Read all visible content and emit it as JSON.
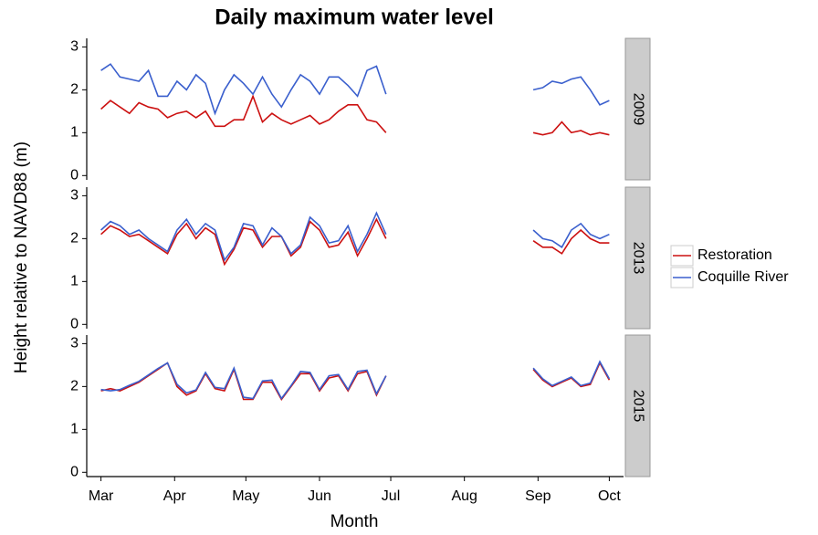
{
  "chart_data": {
    "type": "line",
    "title": "Daily maximum water level",
    "xlabel": "Month",
    "ylabel": "Height relative to NAVD88 (m)",
    "x": [
      0,
      4,
      8,
      12,
      16,
      20,
      24,
      28,
      32,
      36,
      40,
      44,
      48,
      52,
      56,
      60,
      64,
      68,
      72,
      76,
      80,
      84,
      88,
      92,
      96,
      100,
      104,
      108,
      112,
      116,
      120,
      150,
      182,
      186,
      190,
      194,
      198,
      202,
      206,
      210,
      214
    ],
    "xlim": [
      -6,
      220
    ],
    "xticks": [
      {
        "value": 0,
        "label": "Mar"
      },
      {
        "value": 31,
        "label": "Apr"
      },
      {
        "value": 61,
        "label": "May"
      },
      {
        "value": 92,
        "label": "Jun"
      },
      {
        "value": 122,
        "label": "Jul"
      },
      {
        "value": 153,
        "label": "Aug"
      },
      {
        "value": 184,
        "label": "Sep"
      },
      {
        "value": 214,
        "label": "Oct"
      }
    ],
    "legend": "right",
    "series": [
      {
        "name": "Restoration",
        "color": "#cc1111"
      },
      {
        "name": "Coquille River",
        "color": "#3a5fcd"
      }
    ],
    "panels": [
      {
        "label": "2009",
        "ylim": [
          -0.1,
          3.2
        ],
        "yticks": [
          0,
          1,
          2,
          3
        ],
        "values": [
          [
            1.55,
            1.75,
            1.6,
            1.45,
            1.7,
            1.6,
            1.55,
            1.35,
            1.45,
            1.5,
            1.35,
            1.5,
            1.15,
            1.15,
            1.3,
            1.3,
            1.85,
            1.25,
            1.45,
            1.3,
            1.2,
            1.3,
            1.4,
            1.2,
            1.3,
            1.5,
            1.65,
            1.65,
            1.3,
            1.25,
            1.0,
            null,
            1.0,
            0.95,
            1.0,
            1.25,
            1.0,
            1.05,
            0.95,
            1.0,
            0.95
          ],
          [
            2.45,
            2.6,
            2.3,
            2.25,
            2.2,
            2.45,
            1.85,
            1.85,
            2.2,
            2.0,
            2.35,
            2.15,
            1.45,
            2.0,
            2.35,
            2.15,
            1.9,
            2.3,
            1.9,
            1.6,
            2.0,
            2.35,
            2.2,
            1.9,
            2.3,
            2.3,
            2.1,
            1.85,
            2.45,
            2.55,
            1.9,
            null,
            2.0,
            2.05,
            2.2,
            2.15,
            2.25,
            2.3,
            2.0,
            1.65,
            1.75
          ]
        ]
      },
      {
        "label": "2013",
        "ylim": [
          -0.1,
          3.2
        ],
        "yticks": [
          0,
          1,
          2,
          3
        ],
        "values": [
          [
            2.1,
            2.3,
            2.2,
            2.05,
            2.1,
            1.95,
            1.8,
            1.65,
            2.1,
            2.35,
            2.0,
            2.25,
            2.1,
            1.4,
            1.75,
            2.25,
            2.2,
            1.8,
            2.05,
            2.05,
            1.6,
            1.8,
            2.4,
            2.2,
            1.8,
            1.85,
            2.15,
            1.6,
            2.0,
            2.45,
            2.0,
            null,
            1.95,
            1.8,
            1.8,
            1.65,
            2.0,
            2.2,
            2.0,
            1.9,
            1.9
          ],
          [
            2.2,
            2.4,
            2.3,
            2.1,
            2.2,
            2.0,
            1.85,
            1.7,
            2.2,
            2.45,
            2.1,
            2.35,
            2.2,
            1.5,
            1.8,
            2.35,
            2.3,
            1.85,
            2.25,
            2.05,
            1.65,
            1.85,
            2.5,
            2.3,
            1.9,
            1.95,
            2.3,
            1.7,
            2.1,
            2.6,
            2.1,
            null,
            2.2,
            2.0,
            1.95,
            1.8,
            2.2,
            2.35,
            2.1,
            2.0,
            2.1
          ]
        ]
      },
      {
        "label": "2015",
        "ylim": [
          -0.1,
          3.2
        ],
        "yticks": [
          0,
          1,
          2,
          3
        ],
        "values": [
          [
            1.9,
            1.95,
            1.9,
            2.0,
            2.1,
            2.25,
            2.4,
            2.55,
            2.0,
            1.8,
            1.9,
            2.3,
            1.95,
            1.9,
            2.4,
            1.7,
            1.7,
            2.1,
            2.1,
            1.7,
            2.0,
            2.3,
            2.3,
            1.9,
            2.2,
            2.25,
            1.9,
            2.3,
            2.35,
            1.8,
            2.25,
            null,
            2.4,
            2.15,
            2.0,
            2.1,
            2.2,
            2.0,
            2.05,
            2.55,
            2.15
          ],
          [
            1.93,
            1.9,
            1.93,
            2.03,
            2.12,
            2.27,
            2.42,
            2.55,
            2.05,
            1.85,
            1.92,
            2.33,
            1.98,
            1.95,
            2.43,
            1.75,
            1.72,
            2.13,
            2.15,
            1.72,
            2.02,
            2.35,
            2.33,
            1.93,
            2.25,
            2.28,
            1.93,
            2.35,
            2.38,
            1.83,
            2.25,
            null,
            2.43,
            2.18,
            2.02,
            2.12,
            2.22,
            2.02,
            2.08,
            2.58,
            2.18
          ]
        ]
      }
    ]
  }
}
